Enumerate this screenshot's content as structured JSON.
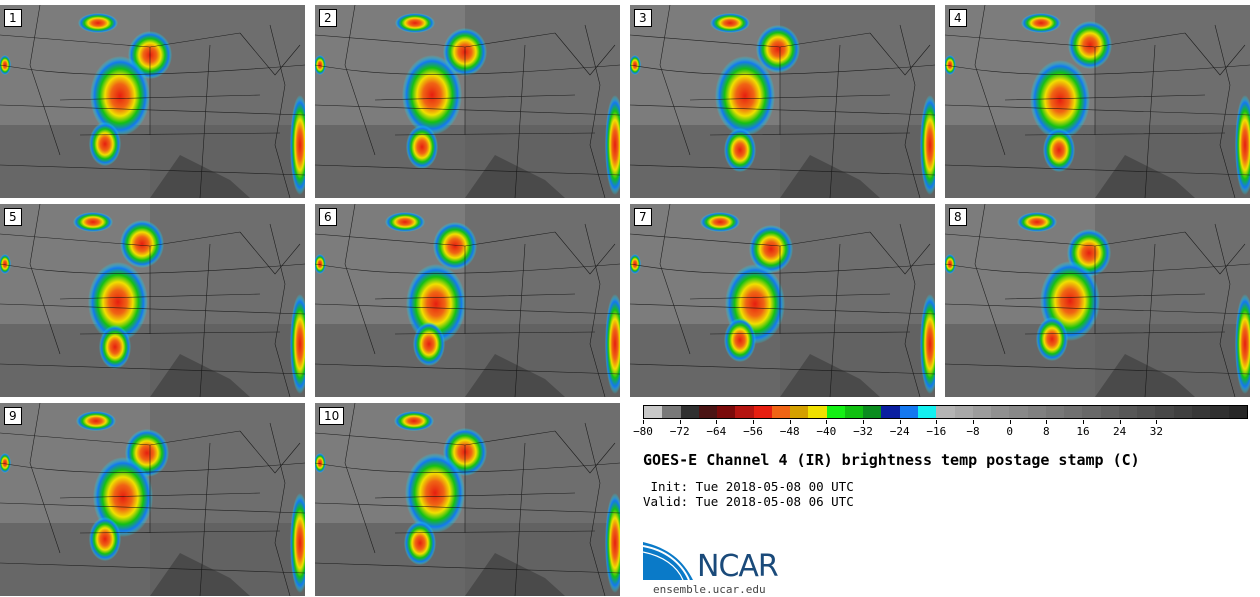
{
  "panels": [
    {
      "label": "1"
    },
    {
      "label": "2"
    },
    {
      "label": "3"
    },
    {
      "label": "4"
    },
    {
      "label": "5"
    },
    {
      "label": "6"
    },
    {
      "label": "7"
    },
    {
      "label": "8"
    },
    {
      "label": "9"
    },
    {
      "label": "10"
    }
  ],
  "colorbar": {
    "colors": [
      "#c8c8c8",
      "#787878",
      "#303030",
      "#4a1414",
      "#7a0a0a",
      "#b41410",
      "#e61e10",
      "#f06414",
      "#d4a000",
      "#f0e000",
      "#14f014",
      "#10c010",
      "#0a8c1e",
      "#0a1ea0",
      "#1478f0",
      "#14f0f0",
      "#b4b4b4",
      "#a8a8a8",
      "#9c9c9c",
      "#909090",
      "#888888",
      "#808080",
      "#787878",
      "#707070",
      "#686868",
      "#606060",
      "#585858",
      "#505050",
      "#484848",
      "#404040",
      "#383838",
      "#303030",
      "#282828"
    ],
    "tick_labels": [
      "−80",
      "−72",
      "−64",
      "−56",
      "−48",
      "−40",
      "−32",
      "−24",
      "−16",
      "−8",
      "0",
      "8",
      "16",
      "24",
      "32"
    ]
  },
  "title": "GOES-E Channel 4 (IR) brightness temp postage stamp (C)",
  "init": " Init: Tue 2018-05-08 00 UTC",
  "valid": "Valid: Tue 2018-05-08 06 UTC",
  "logo": {
    "text": "NCAR",
    "url": "ensemble.ucar.edu"
  }
}
